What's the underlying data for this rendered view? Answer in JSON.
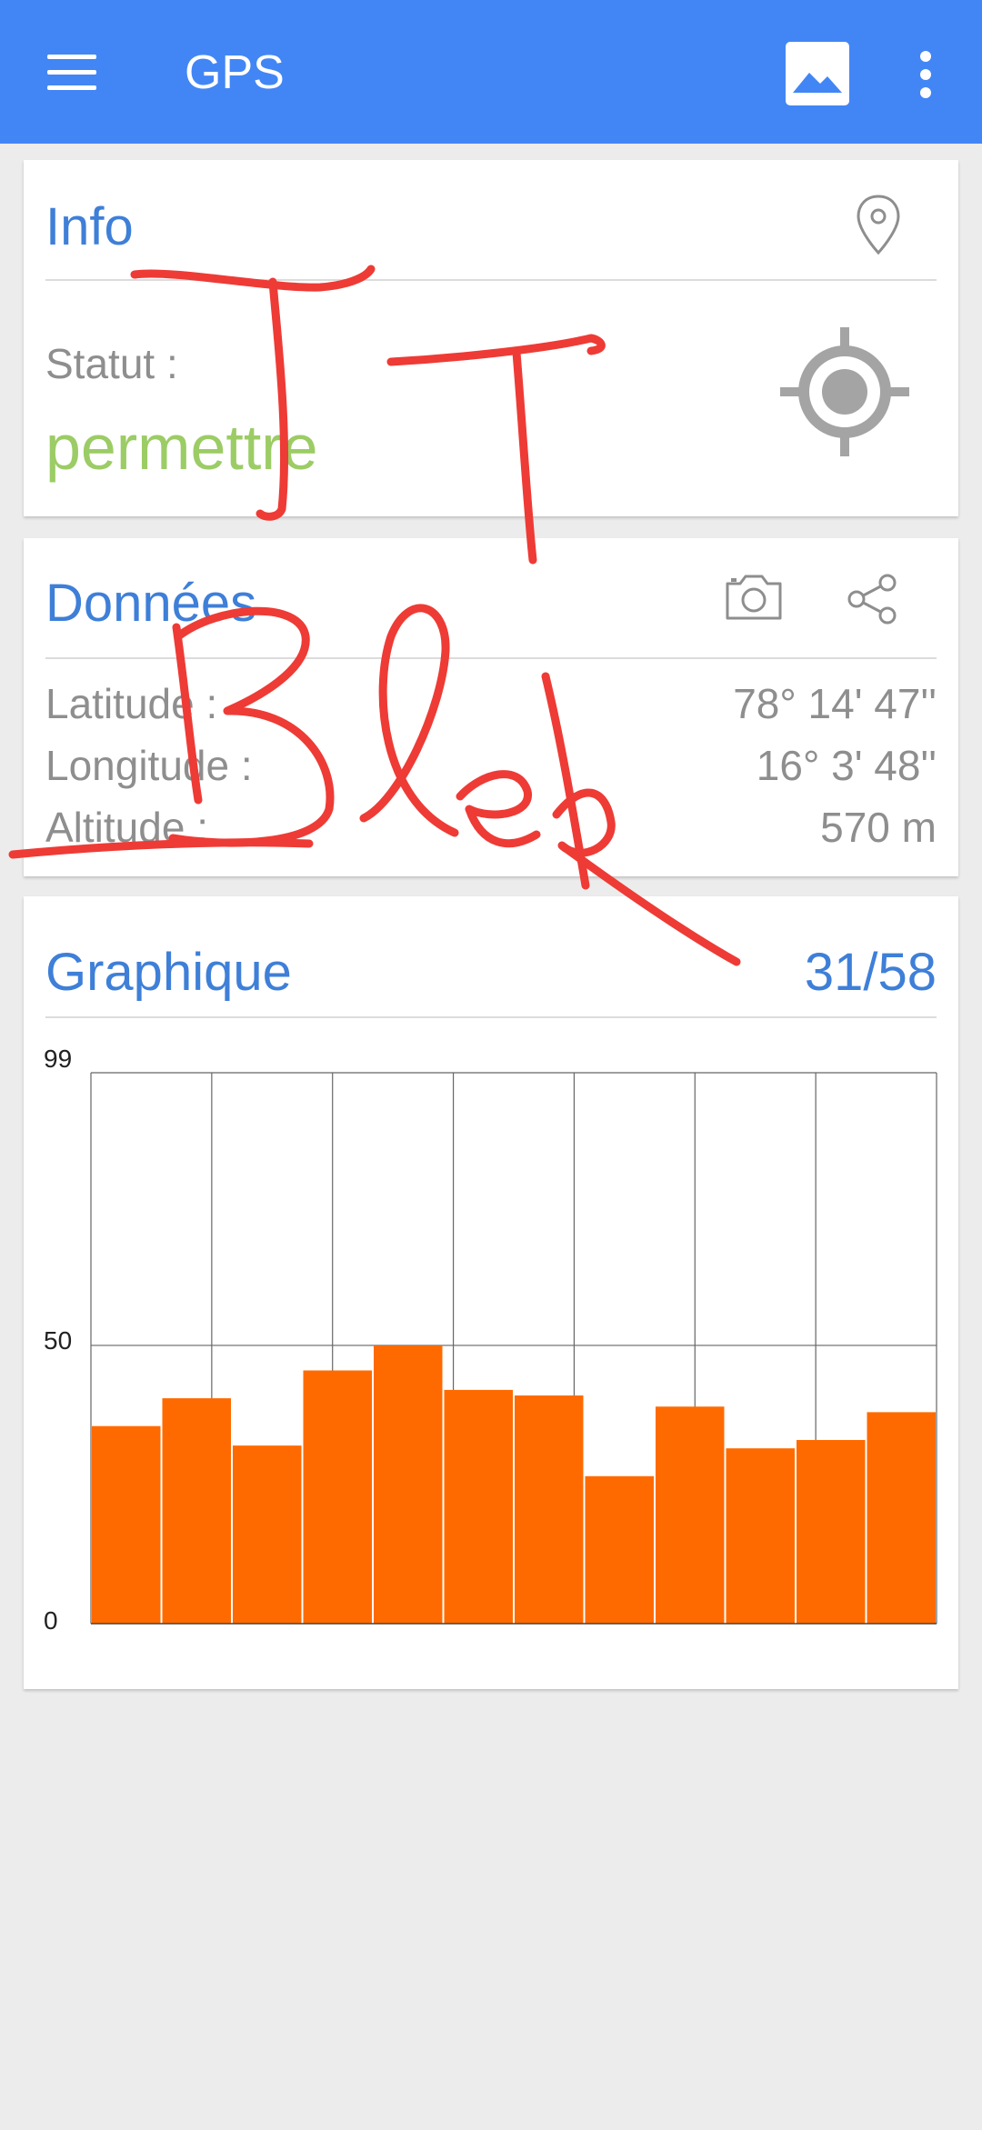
{
  "appbar": {
    "title": "GPS",
    "menu_icon": "hamburger-menu-icon",
    "image_icon": "image-icon",
    "overflow_icon": "more-vert-icon",
    "color": "#4286f5"
  },
  "info_card": {
    "title": "Info",
    "status_label": "Statut :",
    "status_value": "permettre",
    "status_color": "#9ccc65",
    "icons": [
      "location-pin-icon",
      "gps-target-icon"
    ]
  },
  "data_card": {
    "title": "Données",
    "rows": [
      {
        "label": "Latitude :",
        "value": "78° 14' 47''"
      },
      {
        "label": "Longitude :",
        "value": "16° 3' 48''"
      },
      {
        "label": "Altitude :",
        "value": "570 m"
      }
    ],
    "icons": [
      "camera-icon",
      "share-icon"
    ]
  },
  "chart_card": {
    "title": "Graphique",
    "counter": "31/58"
  },
  "chart_data": {
    "type": "bar",
    "title": "",
    "xlabel": "",
    "ylabel": "",
    "ylim": [
      0,
      99
    ],
    "yticks": [
      "0",
      "50",
      "99"
    ],
    "values": [
      35.5,
      40.5,
      32,
      45.5,
      50,
      42,
      41,
      26.5,
      39,
      31.5,
      33,
      38
    ],
    "bar_color": "#ff6a00",
    "grid": true
  },
  "annotation_color": "#ee3b35"
}
